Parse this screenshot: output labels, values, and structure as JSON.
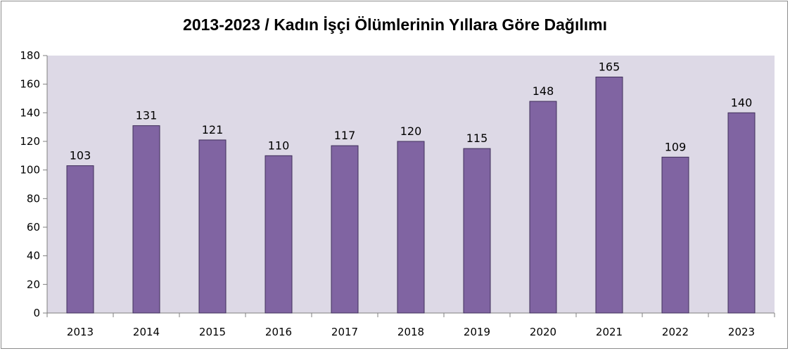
{
  "chart_data": {
    "type": "bar",
    "title": "2013-2023 / Kadın İşçi Ölümlerinin Yıllara Göre Dağılımı",
    "xlabel": "",
    "ylabel": "",
    "categories": [
      "2013",
      "2014",
      "2015",
      "2016",
      "2017",
      "2018",
      "2019",
      "2020",
      "2021",
      "2022",
      "2023"
    ],
    "values": [
      103,
      131,
      121,
      110,
      117,
      120,
      115,
      148,
      165,
      109,
      140
    ],
    "ylim": [
      0,
      180
    ],
    "yticks": [
      0,
      20,
      40,
      60,
      80,
      100,
      120,
      140,
      160,
      180
    ],
    "grid": false,
    "legend": "none",
    "colors": {
      "bar_fill": "#8064a2",
      "bar_stroke": "#3f2f5a",
      "plot_background": "#ddd9e6",
      "axis": "#7f7f7f"
    }
  }
}
